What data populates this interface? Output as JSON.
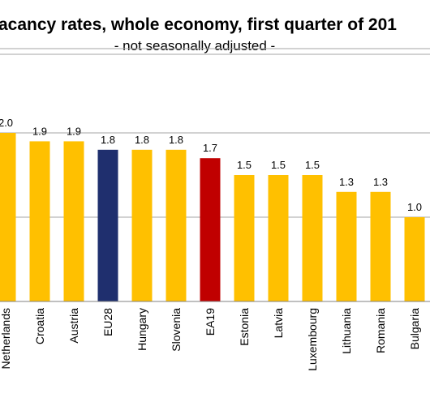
{
  "chart_data": {
    "type": "bar",
    "title": "acancy rates, whole economy, first quarter of 201",
    "subtitle": "- not seasonally adjusted -",
    "categories": [
      "Netherlands",
      "Croatia",
      "Austria",
      "EU28",
      "Hungary",
      "Slovenia",
      "EA19",
      "Estonia",
      "Latvia",
      "Luxembourg",
      "Lithuania",
      "Romania",
      "Bulgaria"
    ],
    "values": [
      2.0,
      1.9,
      1.9,
      1.8,
      1.8,
      1.8,
      1.7,
      1.5,
      1.5,
      1.5,
      1.3,
      1.3,
      1.0
    ],
    "value_labels": [
      "2.0",
      "1.9",
      "1.9",
      "1.8",
      "1.8",
      "1.8",
      "1.7",
      "1.5",
      "1.5",
      "1.5",
      "1.3",
      "1.3",
      "1.0"
    ],
    "colors": {
      "default": "#ffc000",
      "EU28": "#1f2f6e",
      "EA19": "#c00000",
      "grid": "#a6a6a6",
      "axis": "#808080"
    },
    "grid": true,
    "ylim": [
      0,
      3
    ],
    "legend": "none"
  }
}
